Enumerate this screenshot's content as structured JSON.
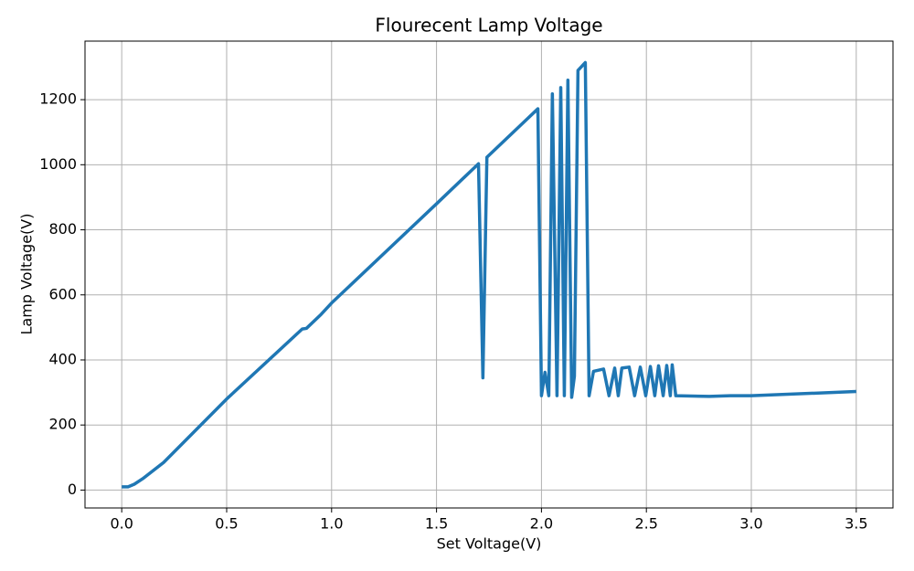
{
  "chart_data": {
    "type": "line",
    "title": "Flourecent Lamp Voltage",
    "x_label": "Set Voltage(V)",
    "y_label": "Lamp Voltage(V)",
    "x": [
      0,
      0.03,
      0.06,
      0.1,
      0.2,
      0.5,
      0.86,
      0.88,
      0.95,
      1.0,
      1.5,
      1.7,
      1.721,
      1.74,
      1.983,
      2.0,
      2.017,
      2.035,
      2.052,
      2.074,
      2.092,
      2.109,
      2.126,
      2.144,
      2.157,
      2.174,
      2.209,
      2.227,
      2.248,
      2.296,
      2.322,
      2.349,
      2.366,
      2.383,
      2.418,
      2.444,
      2.471,
      2.497,
      2.519,
      2.54,
      2.558,
      2.58,
      2.597,
      2.614,
      2.623,
      2.64,
      2.8,
      2.9,
      3.0,
      3.5
    ],
    "series": [
      {
        "name": "Lamp Voltage",
        "color": "#1f77b4",
        "values": [
          10,
          10,
          18,
          35,
          85,
          280,
          495,
          497,
          540,
          575,
          880,
          1003,
          345,
          1023,
          1172,
          290,
          362,
          290,
          1218,
          290,
          1237,
          290,
          1260,
          285,
          350,
          1290,
          1314,
          290,
          365,
          372,
          290,
          375,
          290,
          375,
          378,
          290,
          378,
          290,
          380,
          290,
          382,
          290,
          383,
          290,
          385,
          290,
          288,
          290,
          290,
          303
        ]
      }
    ],
    "xlim": [
      -0.175,
      3.675
    ],
    "ylim": [
      -55,
      1380
    ],
    "xticks": [
      {
        "value": 0,
        "label": "0.0"
      },
      0.5,
      {
        "value": 1,
        "label": "1.0"
      },
      1.5,
      {
        "value": 2,
        "label": "2.0"
      },
      2.5,
      {
        "value": 3,
        "label": "3.0"
      },
      3.5
    ],
    "yticks": [
      0,
      200,
      400,
      600,
      800,
      1000,
      1200
    ],
    "grid": true
  }
}
